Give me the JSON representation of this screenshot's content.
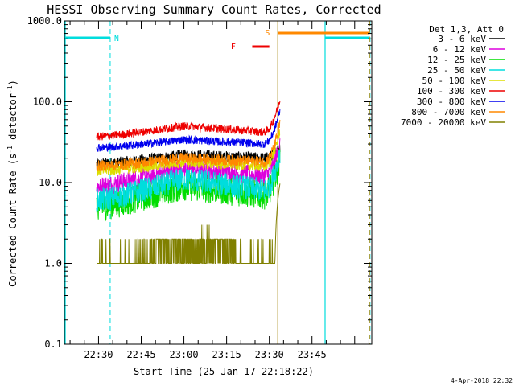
{
  "chart_data": {
    "type": "line",
    "title": "HESSI Observing Summary Count Rates, Corrected",
    "xlabel": "Start Time (25-Jan-17 22:18:22)",
    "ylabel": "Corrected Count Rate (s⁻¹ detector⁻¹)",
    "ylabel_base": "Corrected Count Rate (s",
    "ylabel_mid": " detector",
    "ylabel_end": ")",
    "ylabel_sup": "-1",
    "yscale": "log",
    "ylim": [
      0.1,
      1000
    ],
    "xlim_minutes": [
      0,
      108
    ],
    "x_ticks": [
      {
        "t": 12,
        "label": "22:30"
      },
      {
        "t": 27,
        "label": "22:45"
      },
      {
        "t": 42,
        "label": "23:00"
      },
      {
        "t": 57,
        "label": "23:15"
      },
      {
        "t": 72,
        "label": "23:30"
      },
      {
        "t": 87,
        "label": "23:45"
      }
    ],
    "y_ticks": [
      {
        "v": 0.1,
        "label": "0.1"
      },
      {
        "v": 1,
        "label": "1.0"
      },
      {
        "v": 10,
        "label": "10.0"
      },
      {
        "v": 100,
        "label": "100.0"
      },
      {
        "v": 1000,
        "label": "1000.0"
      }
    ],
    "legend_title": "Det 1,3, Att 0",
    "legend_placement": "right",
    "series": [
      {
        "name": "3 - 6 keV",
        "color": "#000000",
        "values": [
          17,
          20,
          22,
          28
        ]
      },
      {
        "name": "6 - 12 keV",
        "color": "#dd00dd",
        "values": [
          9,
          12,
          15,
          30
        ]
      },
      {
        "name": "12 - 25 keV",
        "color": "#00dd00",
        "values": [
          5,
          7,
          9,
          20
        ]
      },
      {
        "name": "25 - 50 keV",
        "color": "#00dddd",
        "values": [
          6,
          8,
          11,
          25
        ]
      },
      {
        "name": "50 - 100 keV",
        "color": "#dddd00",
        "values": [
          14,
          16,
          18,
          45
        ]
      },
      {
        "name": "100 - 300 keV",
        "color": "#ee0000",
        "values": [
          37,
          42,
          50,
          110
        ]
      },
      {
        "name": "300 - 800 keV",
        "color": "#0000ee",
        "values": [
          27,
          30,
          34,
          80
        ]
      },
      {
        "name": "800 - 7000 keV",
        "color": "#ff8800",
        "values": [
          16,
          18,
          20,
          55
        ]
      },
      {
        "name": "7000 - 20000 keV",
        "color": "#808000",
        "values": [
          1,
          1.5,
          1.6,
          10
        ]
      }
    ],
    "flags": [
      {
        "label": "N",
        "color": "#00dddd"
      },
      {
        "label": "F",
        "color": "#ee0000"
      },
      {
        "label": "S",
        "color": "#ff8800"
      }
    ],
    "timestamp": "4-Apr-2018 22:32"
  }
}
